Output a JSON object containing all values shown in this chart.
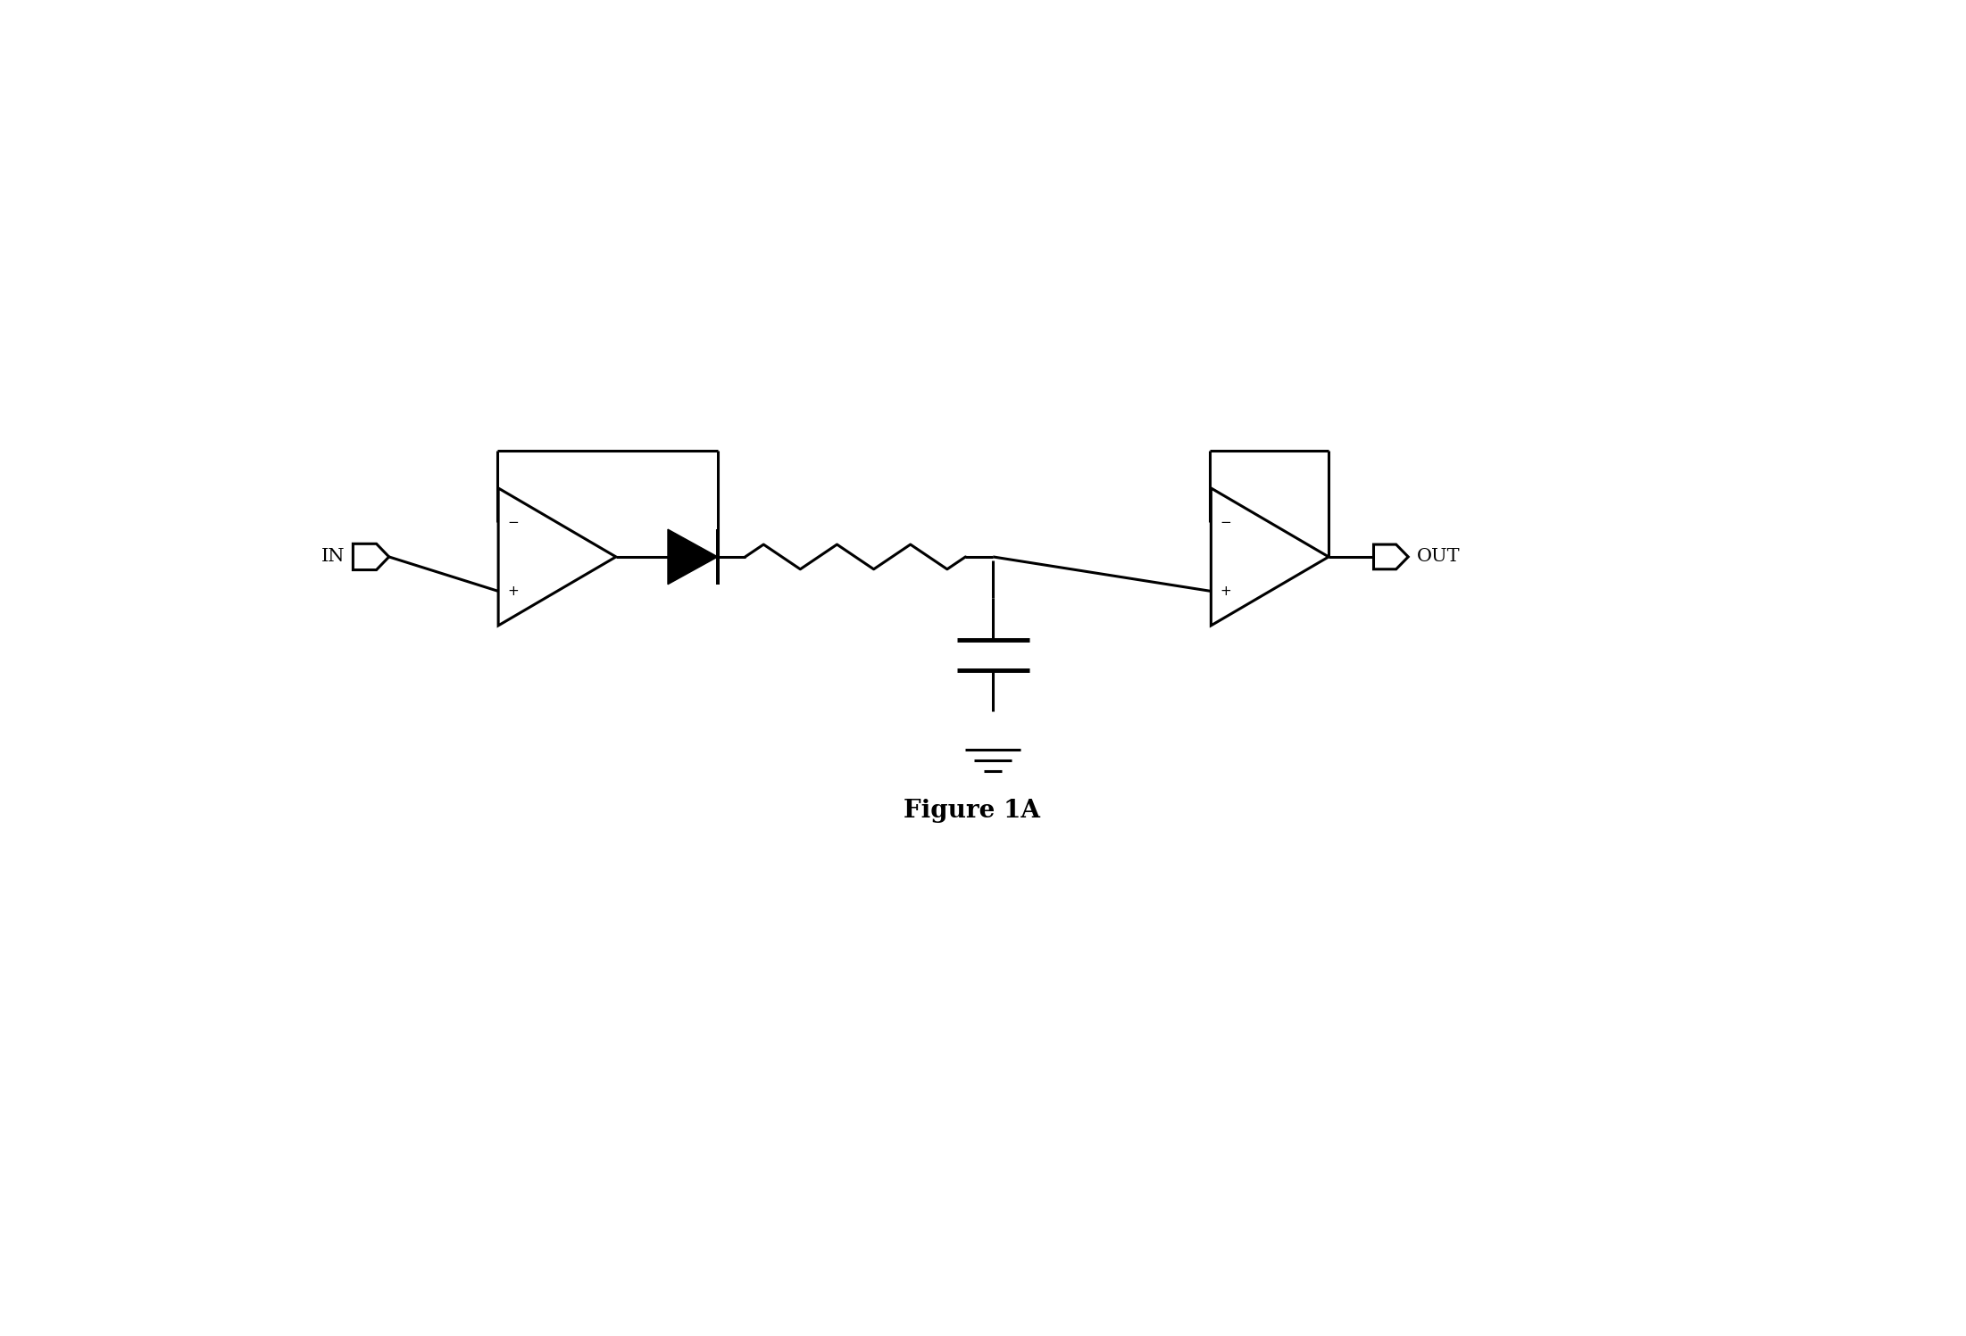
{
  "title": "Figure 1A",
  "background_color": "#ffffff",
  "line_color": "#000000",
  "line_width": 2.2,
  "fig_width": 22.02,
  "fig_height": 14.97,
  "xlim": [
    0,
    22.02
  ],
  "ylim": [
    0,
    14.97
  ]
}
